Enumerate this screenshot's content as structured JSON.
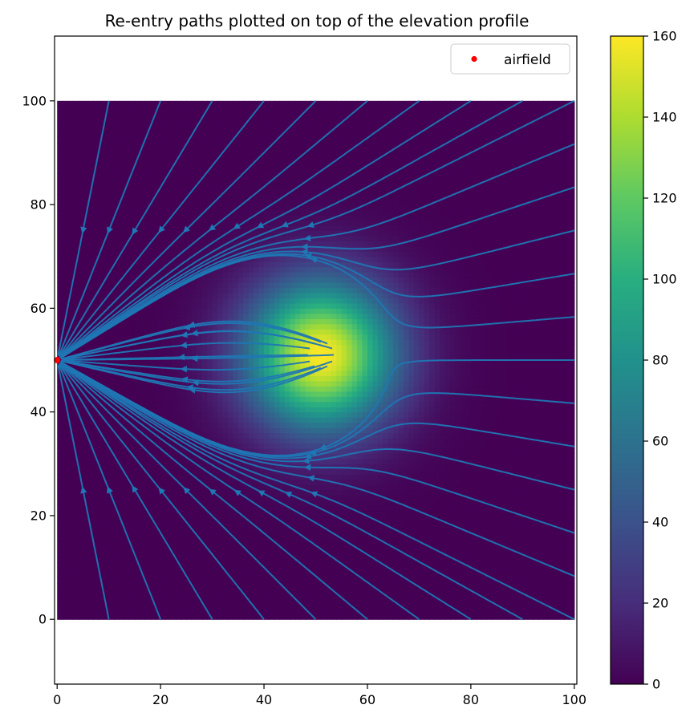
{
  "chart_data": {
    "type": "heatmap",
    "title": "Re-entry paths plotted on top of the elevation profile",
    "xlabel": "",
    "ylabel": "",
    "xlim": [
      -0.5,
      100.5
    ],
    "ylim": [
      -12.5,
      112.5
    ],
    "xticks": [
      0,
      20,
      40,
      60,
      80,
      100
    ],
    "xtick_labels": [
      "0",
      "20",
      "40",
      "60",
      "80",
      "100"
    ],
    "yticks": [
      0,
      20,
      40,
      60,
      80,
      100
    ],
    "ytick_labels": [
      "0",
      "20",
      "40",
      "60",
      "80",
      "100"
    ],
    "elevation": {
      "extent": [
        0,
        100,
        0,
        100
      ],
      "peak_x": 51,
      "peak_y": 51,
      "peak_value": 160,
      "spread": 10,
      "colormap": "viridis"
    },
    "colorbar": {
      "range": [
        0,
        160
      ],
      "ticks": [
        0,
        20,
        40,
        60,
        80,
        100,
        120,
        140,
        160
      ],
      "tick_labels": [
        "0",
        "20",
        "40",
        "60",
        "80",
        "100",
        "120",
        "140",
        "160"
      ]
    },
    "streamlines": {
      "color": "#1f77b4",
      "target": [
        0,
        50
      ]
    },
    "series": [
      {
        "name": "airfield",
        "type": "scatter",
        "x": [
          0
        ],
        "y": [
          50
        ],
        "color": "#ff0000"
      }
    ],
    "legend": {
      "placement": "top-right",
      "entries": [
        "airfield"
      ]
    },
    "grid": false
  }
}
